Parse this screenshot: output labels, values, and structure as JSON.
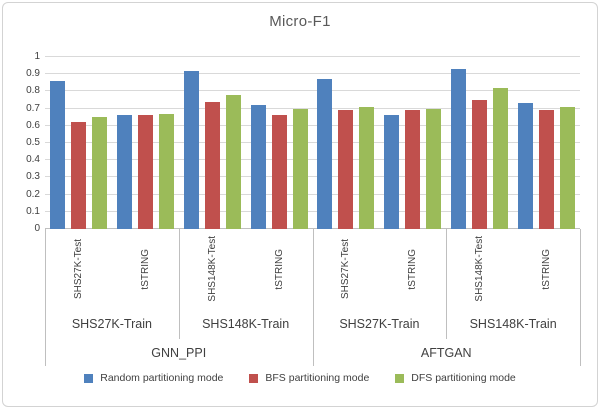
{
  "title": "Micro-F1",
  "chart_data": {
    "type": "bar",
    "title": "Micro-F1",
    "xlabel": "",
    "ylabel": "",
    "ylim": [
      0,
      1
    ],
    "yticks": [
      0,
      0.1,
      0.2,
      0.3,
      0.4,
      0.5,
      0.6,
      0.7,
      0.8,
      0.9,
      1
    ],
    "grid": true,
    "legend_position": "bottom",
    "categories": [
      "SHS27K-Test",
      "tSTRING",
      "SHS148K-Test",
      "tSTRING",
      "SHS27K-Test",
      "tSTRING",
      "SHS148K-Test",
      "tSTRING"
    ],
    "group_labels": [
      "SHS27K-Train",
      "SHS148K-Train",
      "SHS27K-Train",
      "SHS148K-Train"
    ],
    "super_labels": [
      "GNN_PPI",
      "AFTGAN"
    ],
    "series": [
      {
        "name": "Random partitioning mode",
        "color": "#4F81BD",
        "values": [
          0.86,
          0.66,
          0.92,
          0.72,
          0.87,
          0.66,
          0.93,
          0.73
        ]
      },
      {
        "name": "BFS partitioning mode",
        "color": "#C0504D",
        "values": [
          0.62,
          0.66,
          0.74,
          0.66,
          0.69,
          0.69,
          0.75,
          0.69
        ]
      },
      {
        "name": "DFS partitioning mode",
        "color": "#9BBB59",
        "values": [
          0.65,
          0.67,
          0.78,
          0.7,
          0.71,
          0.7,
          0.82,
          0.71
        ]
      }
    ],
    "colors": {
      "gridline": "#d9d9d9",
      "axis": "#bfbfbf",
      "text": "#404040",
      "title": "#595959"
    }
  }
}
